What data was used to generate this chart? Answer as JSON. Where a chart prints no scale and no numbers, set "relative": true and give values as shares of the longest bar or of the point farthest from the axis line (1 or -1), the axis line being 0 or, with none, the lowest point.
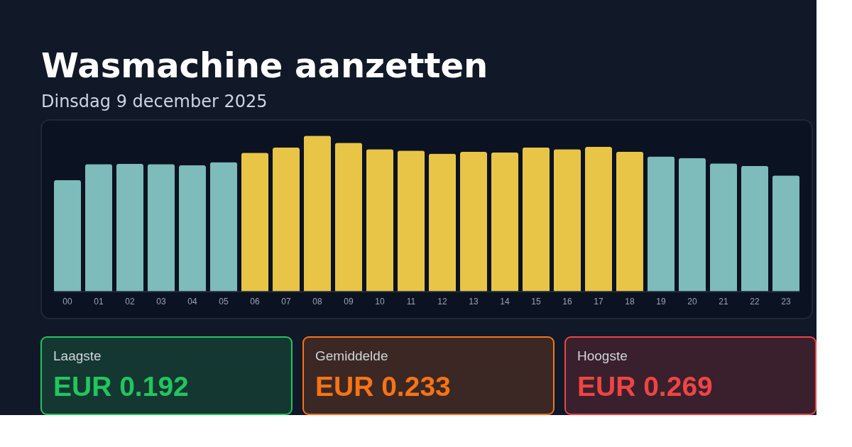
{
  "chart_data": [
    {
      "type": "bar",
      "title": "Wasmachine aanzetten",
      "subtitle": "Dinsdag 9 december 2025",
      "relative": true,
      "categories": [
        "00",
        "01",
        "02",
        "03",
        "04",
        "05",
        "06",
        "07",
        "08",
        "09",
        "10",
        "11",
        "12",
        "13",
        "14",
        "15",
        "16",
        "17",
        "18",
        "19",
        "20",
        "21",
        "22",
        "23"
      ],
      "values": [
        0.714,
        0.818,
        0.819,
        0.818,
        0.809,
        0.83,
        0.89,
        0.923,
        1,
        0.954,
        0.913,
        0.904,
        0.885,
        0.896,
        0.893,
        0.925,
        0.913,
        0.928,
        0.897,
        0.866,
        0.856,
        0.822,
        0.806,
        0.744
      ],
      "colors": [
        "#7ebbbb",
        "#7ebbbb",
        "#7ebbbb",
        "#7ebbbb",
        "#7ebbbb",
        "#7ebbbb",
        "#e8c547",
        "#e8c547",
        "#e8c547",
        "#e8c547",
        "#e8c547",
        "#e8c547",
        "#e8c547",
        "#e8c547",
        "#e8c547",
        "#e8c547",
        "#e8c547",
        "#e8c547",
        "#e8c547",
        "#7ebbbb",
        "#7ebbbb",
        "#7ebbbb",
        "#7ebbbb",
        "#7ebbbb"
      ]
    },
    {
      "type": "other",
      "title": "Laagste",
      "annotations": [
        "EUR 0.192"
      ],
      "color": "#22c55e"
    },
    {
      "type": "other",
      "title": "Gemiddelde",
      "annotations": [
        "EUR 0.233"
      ],
      "color": "#f97316"
    },
    {
      "type": "other",
      "title": "Hoogste",
      "annotations": [
        "EUR 0.269"
      ],
      "color": "#ef4444"
    }
  ]
}
